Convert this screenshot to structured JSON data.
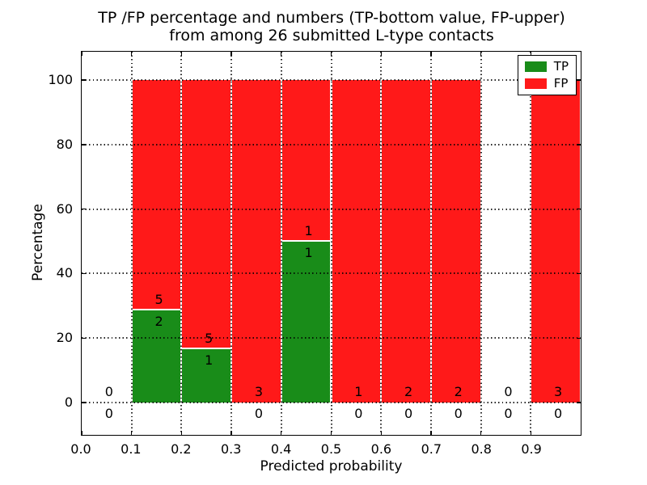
{
  "title": {
    "line1": "TP /FP percentage and numbers (TP-bottom value, FP-upper)",
    "line2": "from among 26 submitted L-type contacts"
  },
  "chart_data": {
    "type": "bar",
    "stacked": true,
    "title": "TP /FP percentage and numbers (TP-bottom value, FP-upper) from among 26 submitted L-type contacts",
    "xlabel": "Predicted probability",
    "ylabel": "Percentage",
    "x_tick_labels": [
      "0.0",
      "0.1",
      "0.2",
      "0.3",
      "0.4",
      "0.5",
      "0.6",
      "0.7",
      "0.8",
      "0.9"
    ],
    "x_tick_values": [
      0.0,
      0.1,
      0.2,
      0.3,
      0.4,
      0.5,
      0.6,
      0.7,
      0.8,
      0.9
    ],
    "y_tick_labels": [
      "0",
      "20",
      "40",
      "60",
      "80",
      "100"
    ],
    "y_tick_values": [
      0,
      20,
      40,
      60,
      80,
      100
    ],
    "xlim": [
      0.0,
      1.0
    ],
    "ylim": [
      -10.3,
      108.8
    ],
    "grid": "dotted black, drawn over bars",
    "categories": [
      "0.0-0.1",
      "0.1-0.2",
      "0.2-0.3",
      "0.3-0.4",
      "0.4-0.5",
      "0.5-0.6",
      "0.6-0.7",
      "0.7-0.8",
      "0.8-0.9",
      "0.9-1.0"
    ],
    "series": [
      {
        "name": "TP",
        "counts": [
          0,
          2,
          1,
          0,
          1,
          0,
          0,
          0,
          0,
          0
        ],
        "color": "#198C19"
      },
      {
        "name": "FP",
        "counts": [
          0,
          5,
          5,
          3,
          1,
          1,
          2,
          2,
          0,
          3
        ],
        "color": "#FF1919"
      }
    ],
    "tp_percent": [
      0,
      28.571,
      16.667,
      0,
      50.0,
      0,
      0,
      0,
      0,
      0
    ],
    "bar_total_percent": 100,
    "total_contacts": 26,
    "legend": {
      "position": "upper right",
      "entries": [
        {
          "label": "TP",
          "color": "#198C19"
        },
        {
          "label": "FP",
          "color": "#FF1919"
        }
      ]
    }
  }
}
